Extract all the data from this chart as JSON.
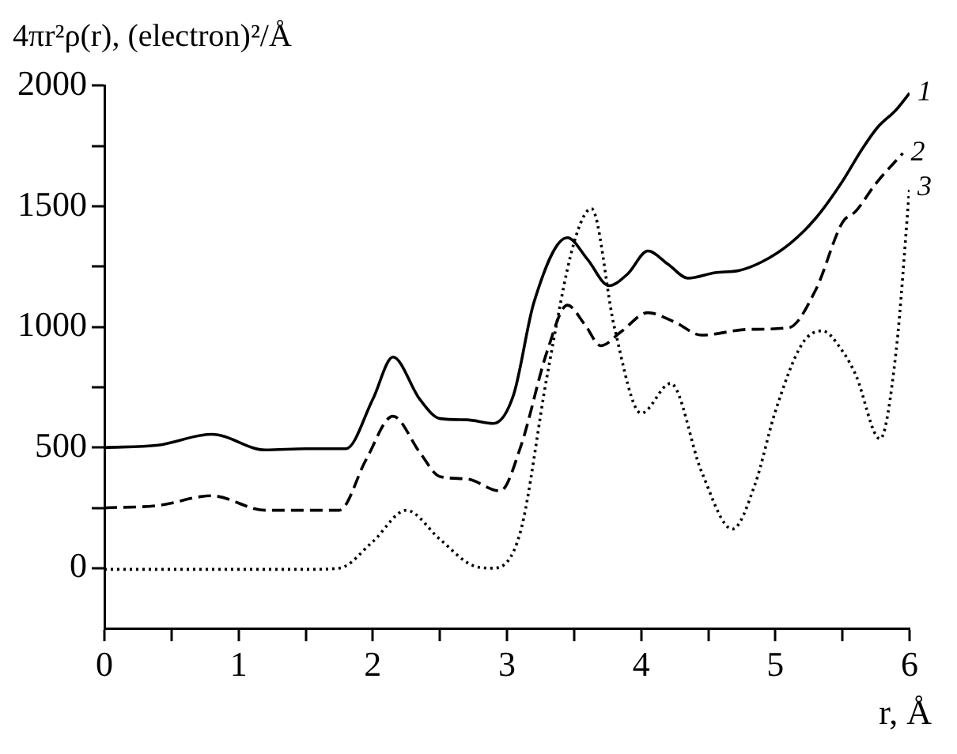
{
  "chart_data": {
    "type": "line",
    "xlabel": "r, Å",
    "ylabel": "4πr²ρ(r), (electron)²/Å",
    "xlim": [
      0,
      6
    ],
    "ylim": [
      -250,
      2000
    ],
    "xticks": [
      0,
      {
        "value": 0.5,
        "label": null
      },
      1,
      {
        "value": 1.5,
        "label": null
      },
      2,
      {
        "value": 2.5,
        "label": null
      },
      3,
      {
        "value": 3.5,
        "label": null
      },
      4,
      {
        "value": 4.5,
        "label": null
      },
      5,
      {
        "value": 5.5,
        "label": null
      },
      6
    ],
    "yticks": [
      0,
      {
        "value": 250,
        "label": null
      },
      500,
      {
        "value": 750,
        "label": null
      },
      1000,
      {
        "value": 1250,
        "label": null
      },
      1500,
      {
        "value": 1750,
        "label": null
      },
      2000
    ],
    "grid": false,
    "legend": false,
    "marker": "none",
    "series": [
      {
        "name": "1",
        "color": "#000000",
        "line_style": "solid",
        "x": [
          0,
          0.4,
          0.8,
          1.2,
          1.5,
          1.8,
          2.0,
          2.15,
          2.35,
          2.5,
          2.7,
          2.9,
          3.05,
          3.2,
          3.45,
          3.6,
          3.76,
          3.9,
          4.05,
          4.2,
          4.35,
          4.55,
          4.73,
          4.9,
          5.11,
          5.3,
          5.49,
          5.65,
          5.76,
          5.9,
          6.0
        ],
        "values": [
          500,
          510,
          555,
          490,
          495,
          495,
          700,
          875,
          700,
          620,
          615,
          600,
          720,
          1100,
          1370,
          1280,
          1171,
          1220,
          1315,
          1260,
          1202,
          1225,
          1234,
          1270,
          1346,
          1450,
          1595,
          1740,
          1826,
          1900,
          1969
        ]
      },
      {
        "name": "2",
        "color": "#000000",
        "line_style": "dashed",
        "x": [
          0,
          0.4,
          0.8,
          1.2,
          1.5,
          1.75,
          1.95,
          2.15,
          2.35,
          2.5,
          2.7,
          2.95,
          3.1,
          3.3,
          3.45,
          3.58,
          3.7,
          3.85,
          4.05,
          4.25,
          4.45,
          4.8,
          5.1,
          5.3,
          5.5,
          5.6,
          5.75,
          5.95
        ],
        "values": [
          250,
          260,
          300,
          240,
          240,
          240,
          450,
          630,
          480,
          380,
          370,
          320,
          500,
          900,
          1090,
          1010,
          922,
          980,
          1059,
          1020,
          966,
          990,
          997,
          1153,
          1433,
          1480,
          1595,
          1720
        ]
      },
      {
        "name": "3",
        "color": "#000000",
        "line_style": "dotted",
        "x": [
          0,
          0.5,
          1.0,
          1.5,
          1.75,
          2.0,
          2.25,
          2.5,
          2.75,
          2.9,
          3.1,
          3.3,
          3.5,
          3.63,
          3.8,
          4.0,
          4.22,
          4.45,
          4.68,
          4.85,
          5.0,
          5.2,
          5.35,
          5.5,
          5.6,
          5.78,
          5.9,
          6.0
        ],
        "values": [
          -5,
          -5,
          -5,
          -5,
          0,
          110,
          240,
          120,
          10,
          0,
          150,
          800,
          1350,
          1490,
          1000,
          642,
          766,
          400,
          162,
          350,
          650,
          930,
          984,
          900,
          800,
          536,
          900,
          1576
        ]
      }
    ]
  }
}
